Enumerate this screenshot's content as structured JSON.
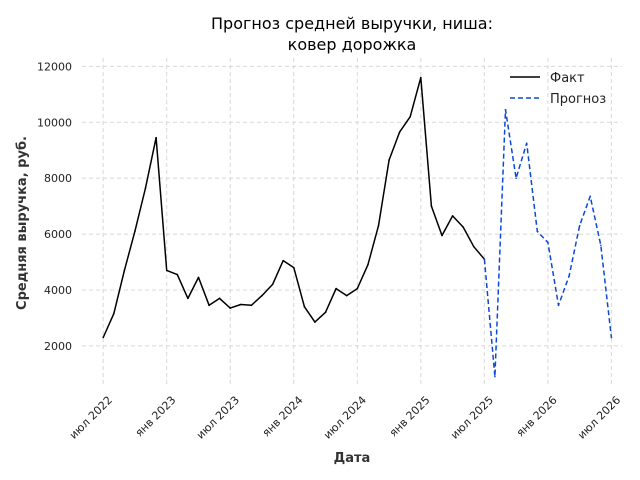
{
  "chart_data": {
    "type": "line",
    "title": "Прогноз средней выручки, ниша:",
    "subtitle": "ковер дорожка",
    "xlabel": "Дата",
    "ylabel": "Средняя выручка, руб.",
    "x_tick_labels": [
      "июл 2022",
      "янв 2023",
      "июл 2023",
      "янв 2024",
      "июл 2024",
      "янв 2025",
      "июл 2025",
      "янв 2026",
      "июл 2026"
    ],
    "y_ticks": [
      2000,
      4000,
      6000,
      8000,
      10000,
      12000
    ],
    "ylim": [
      600,
      12300
    ],
    "xlim": [
      "2022-05-01",
      "2026-08-01"
    ],
    "grid": true,
    "legend_position": "top-right",
    "series": [
      {
        "name": "Факт",
        "color": "#000000",
        "style": "solid",
        "x": [
          "2022-07",
          "2022-08",
          "2022-09",
          "2022-10",
          "2022-11",
          "2022-12",
          "2023-01",
          "2023-02",
          "2023-03",
          "2023-04",
          "2023-05",
          "2023-06",
          "2023-07",
          "2023-08",
          "2023-09",
          "2023-10",
          "2023-11",
          "2023-12",
          "2024-01",
          "2024-02",
          "2024-03",
          "2024-04",
          "2024-05",
          "2024-06",
          "2024-07",
          "2024-08",
          "2024-09",
          "2024-10",
          "2024-11",
          "2024-12",
          "2025-01",
          "2025-02",
          "2025-03",
          "2025-04",
          "2025-05",
          "2025-06",
          "2025-07"
        ],
        "values": [
          2300,
          3150,
          4700,
          6100,
          7650,
          9450,
          4700,
          4550,
          3700,
          4450,
          3450,
          3700,
          3350,
          3480,
          3450,
          3800,
          4200,
          5050,
          4800,
          3400,
          2850,
          3200,
          4050,
          3800,
          4050,
          4900,
          6300,
          8650,
          9650,
          10200,
          11600,
          7000,
          5950,
          6650,
          6250,
          5550,
          5100
        ]
      },
      {
        "name": "Прогноз",
        "color": "#0b48d6",
        "style": "dashed",
        "x": [
          "2025-07",
          "2025-08",
          "2025-09",
          "2025-10",
          "2025-11",
          "2025-12",
          "2026-01",
          "2026-02",
          "2026-03",
          "2026-04",
          "2026-05",
          "2026-06",
          "2026-07"
        ],
        "values": [
          5100,
          900,
          10450,
          8000,
          9250,
          6100,
          5700,
          3450,
          4500,
          6300,
          7350,
          5600,
          2300
        ]
      }
    ]
  }
}
